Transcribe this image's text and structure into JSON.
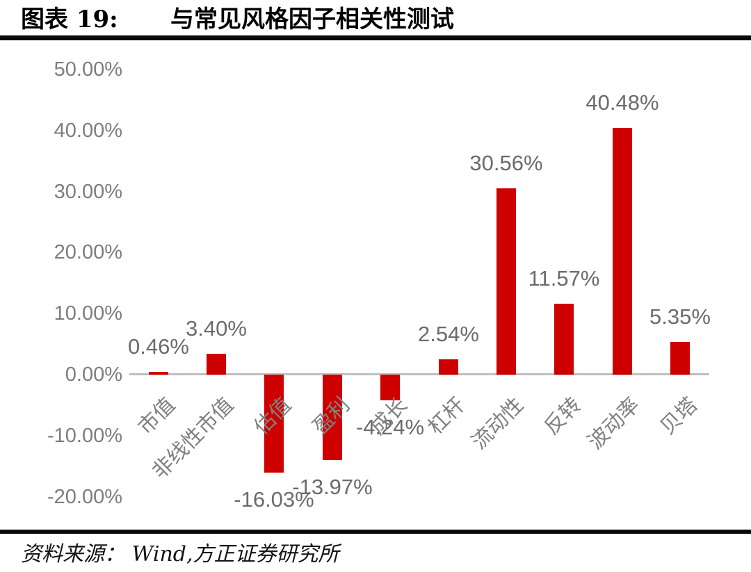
{
  "header": {
    "figure_label": "图表 19:",
    "title": "与常见风格因子相关性测试"
  },
  "footer": {
    "source": "资料来源： Wind,方正证券研究所"
  },
  "chart_data": {
    "type": "bar",
    "title": "与常见风格因子相关性测试",
    "categories": [
      "市值",
      "非线性市值",
      "估值",
      "盈利",
      "成长",
      "杠杆",
      "流动性",
      "反转",
      "波动率",
      "贝塔"
    ],
    "values": [
      0.46,
      3.4,
      -16.03,
      -13.97,
      -4.24,
      2.54,
      30.56,
      11.57,
      40.48,
      5.35
    ],
    "data_labels": [
      "0.46%",
      "3.40%",
      "-16.03%",
      "-13.97%",
      "-4.24%",
      "2.54%",
      "30.56%",
      "11.57%",
      "40.48%",
      "5.35%"
    ],
    "y_ticks": [
      "50.00%",
      "40.00%",
      "30.00%",
      "20.00%",
      "10.00%",
      "0.00%",
      "-10.00%",
      "-20.00%"
    ],
    "ylim": [
      -20,
      50
    ],
    "xlabel": "",
    "ylabel": "",
    "grid": false,
    "legend_position": "none",
    "bar_color": "#cf0000",
    "axis_line_color": "#bfbfbf",
    "source": "资料来源： Wind,方正证券研究所"
  }
}
